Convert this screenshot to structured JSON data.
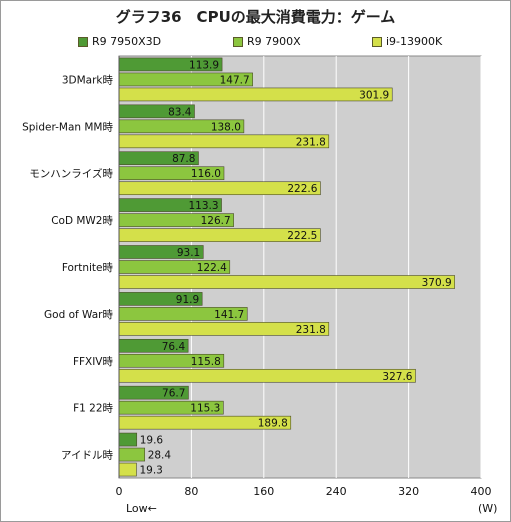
{
  "chart_data": {
    "type": "bar",
    "orientation": "horizontal",
    "title": "グラフ36　CPUの最大消費電力：ゲーム",
    "categories": [
      "3DMark時",
      "Spider-Man MM時",
      "モンハンライズ時",
      "CoD MW2時",
      "Fortnite時",
      "God of War時",
      "FFXIV時",
      "F1 22時",
      "アイドル時"
    ],
    "series": [
      {
        "name": "R9 7950X3D",
        "color": "#4f9a35",
        "values": [
          113.9,
          83.4,
          87.8,
          113.3,
          93.1,
          91.9,
          76.4,
          76.7,
          19.6
        ]
      },
      {
        "name": "R9 7900X",
        "color": "#8cc63f",
        "values": [
          147.7,
          138.0,
          116.0,
          126.7,
          122.4,
          141.7,
          115.8,
          115.3,
          28.4
        ]
      },
      {
        "name": "i9-13900K",
        "color": "#d4e04a",
        "values": [
          301.9,
          231.8,
          222.6,
          222.5,
          370.9,
          231.8,
          327.6,
          189.8,
          19.3
        ]
      }
    ],
    "value_labels": [
      [
        "113.9",
        "83.4",
        "87.8",
        "113.3",
        "93.1",
        "91.9",
        "76.4",
        "76.7",
        "19.6"
      ],
      [
        "147.7",
        "138.0",
        "116.0",
        "126.7",
        "122.4",
        "141.7",
        "115.8",
        "115.3",
        "28.4"
      ],
      [
        "301.9",
        "231.8",
        "222.6",
        "222.5",
        "370.9",
        "231.8",
        "327.6",
        "189.8",
        "19.3"
      ]
    ],
    "xlim": [
      0,
      400
    ],
    "xticks": [
      0,
      80,
      160,
      240,
      320,
      400
    ],
    "xtick_labels": [
      "0",
      "80",
      "160",
      "240",
      "320",
      "400"
    ],
    "xlabel_left": "Low←",
    "xlabel_right": "(W)",
    "legend_position": "top",
    "grid": true,
    "plot_background": "#cfcfcf"
  }
}
